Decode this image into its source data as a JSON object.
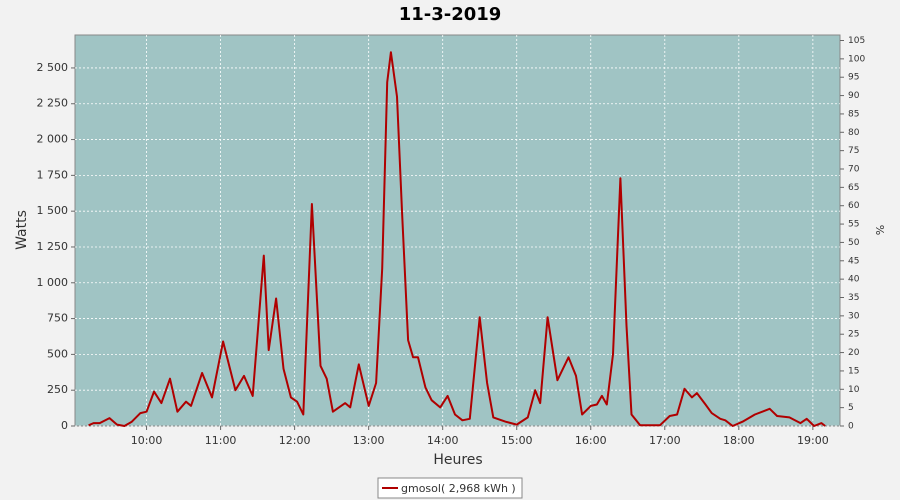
{
  "chart_data": {
    "type": "line",
    "title": "11-3-2019",
    "x_label": "Heures",
    "y_label": "Watts",
    "y2_label": "%",
    "x": [
      "09:13",
      "09:17",
      "09:22",
      "09:30",
      "09:36",
      "09:42",
      "09:48",
      "09:55",
      "10:00",
      "10:06",
      "10:12",
      "10:19",
      "10:25",
      "10:32",
      "10:36",
      "10:45",
      "10:53",
      "11:02",
      "11:12",
      "11:19",
      "11:26",
      "11:35",
      "11:39",
      "11:45",
      "11:51",
      "11:57",
      "12:02",
      "12:07",
      "12:14",
      "12:21",
      "12:26",
      "12:31",
      "12:41",
      "12:45",
      "12:52",
      "13:00",
      "13:06",
      "13:11",
      "13:15",
      "13:18",
      "13:23",
      "13:27",
      "13:32",
      "13:36",
      "13:40",
      "13:46",
      "13:51",
      "13:58",
      "14:04",
      "14:10",
      "14:16",
      "14:22",
      "14:30",
      "14:36",
      "14:41",
      "14:51",
      "15:00",
      "15:09",
      "15:15",
      "15:19",
      "15:25",
      "15:33",
      "15:42",
      "15:48",
      "15:53",
      "16:00",
      "16:05",
      "16:09",
      "16:13",
      "16:18",
      "16:24",
      "16:29",
      "16:33",
      "16:40",
      "16:56",
      "17:04",
      "17:10",
      "17:16",
      "17:22",
      "17:26",
      "17:33",
      "17:38",
      "17:45",
      "17:49",
      "17:55",
      "18:03",
      "18:13",
      "18:19",
      "18:25",
      "18:31",
      "18:41",
      "18:50",
      "18:55",
      "19:01",
      "19:07",
      "19:10"
    ],
    "series": [
      {
        "name": "gmosol( 2,968 kWh )",
        "color": "#b00000",
        "values": [
          5,
          20,
          20,
          55,
          10,
          0,
          30,
          90,
          100,
          240,
          160,
          330,
          100,
          170,
          140,
          370,
          200,
          590,
          250,
          350,
          210,
          1190,
          530,
          890,
          400,
          200,
          170,
          80,
          1550,
          420,
          330,
          100,
          160,
          130,
          430,
          140,
          300,
          1100,
          2400,
          2610,
          2300,
          1500,
          600,
          480,
          480,
          270,
          180,
          130,
          210,
          80,
          40,
          50,
          760,
          300,
          60,
          30,
          10,
          60,
          250,
          160,
          760,
          320,
          480,
          350,
          80,
          140,
          150,
          210,
          150,
          500,
          1730,
          700,
          80,
          5,
          5,
          70,
          80,
          260,
          200,
          230,
          150,
          90,
          50,
          40,
          0,
          30,
          80,
          100,
          120,
          70,
          60,
          20,
          50,
          0,
          20,
          0
        ]
      }
    ],
    "xlim": [
      "09:02",
      "19:22"
    ],
    "xticks": [
      "10:00",
      "11:00",
      "12:00",
      "13:00",
      "14:00",
      "15:00",
      "16:00",
      "17:00",
      "18:00",
      "19:00"
    ],
    "ylim": [
      0,
      2730
    ],
    "yticks": [
      0,
      250,
      500,
      750,
      {
        "value": 1000,
        "label": "1 000"
      },
      {
        "value": 1250,
        "label": "1 250"
      },
      {
        "value": 1500,
        "label": "1 500"
      },
      {
        "value": 1750,
        "label": "1 750"
      },
      {
        "value": 2000,
        "label": "2 000"
      },
      {
        "value": 2250,
        "label": "2 250"
      },
      {
        "value": 2500,
        "label": "2 500"
      }
    ],
    "y2lim": [
      0,
      106.5
    ],
    "y2ticks": [
      0,
      5,
      10,
      15,
      20,
      25,
      30,
      35,
      40,
      45,
      50,
      55,
      60,
      65,
      70,
      75,
      80,
      85,
      90,
      95,
      100,
      105
    ],
    "grid": true,
    "legend": "bottom",
    "plot_background": "#a0c4c4"
  }
}
